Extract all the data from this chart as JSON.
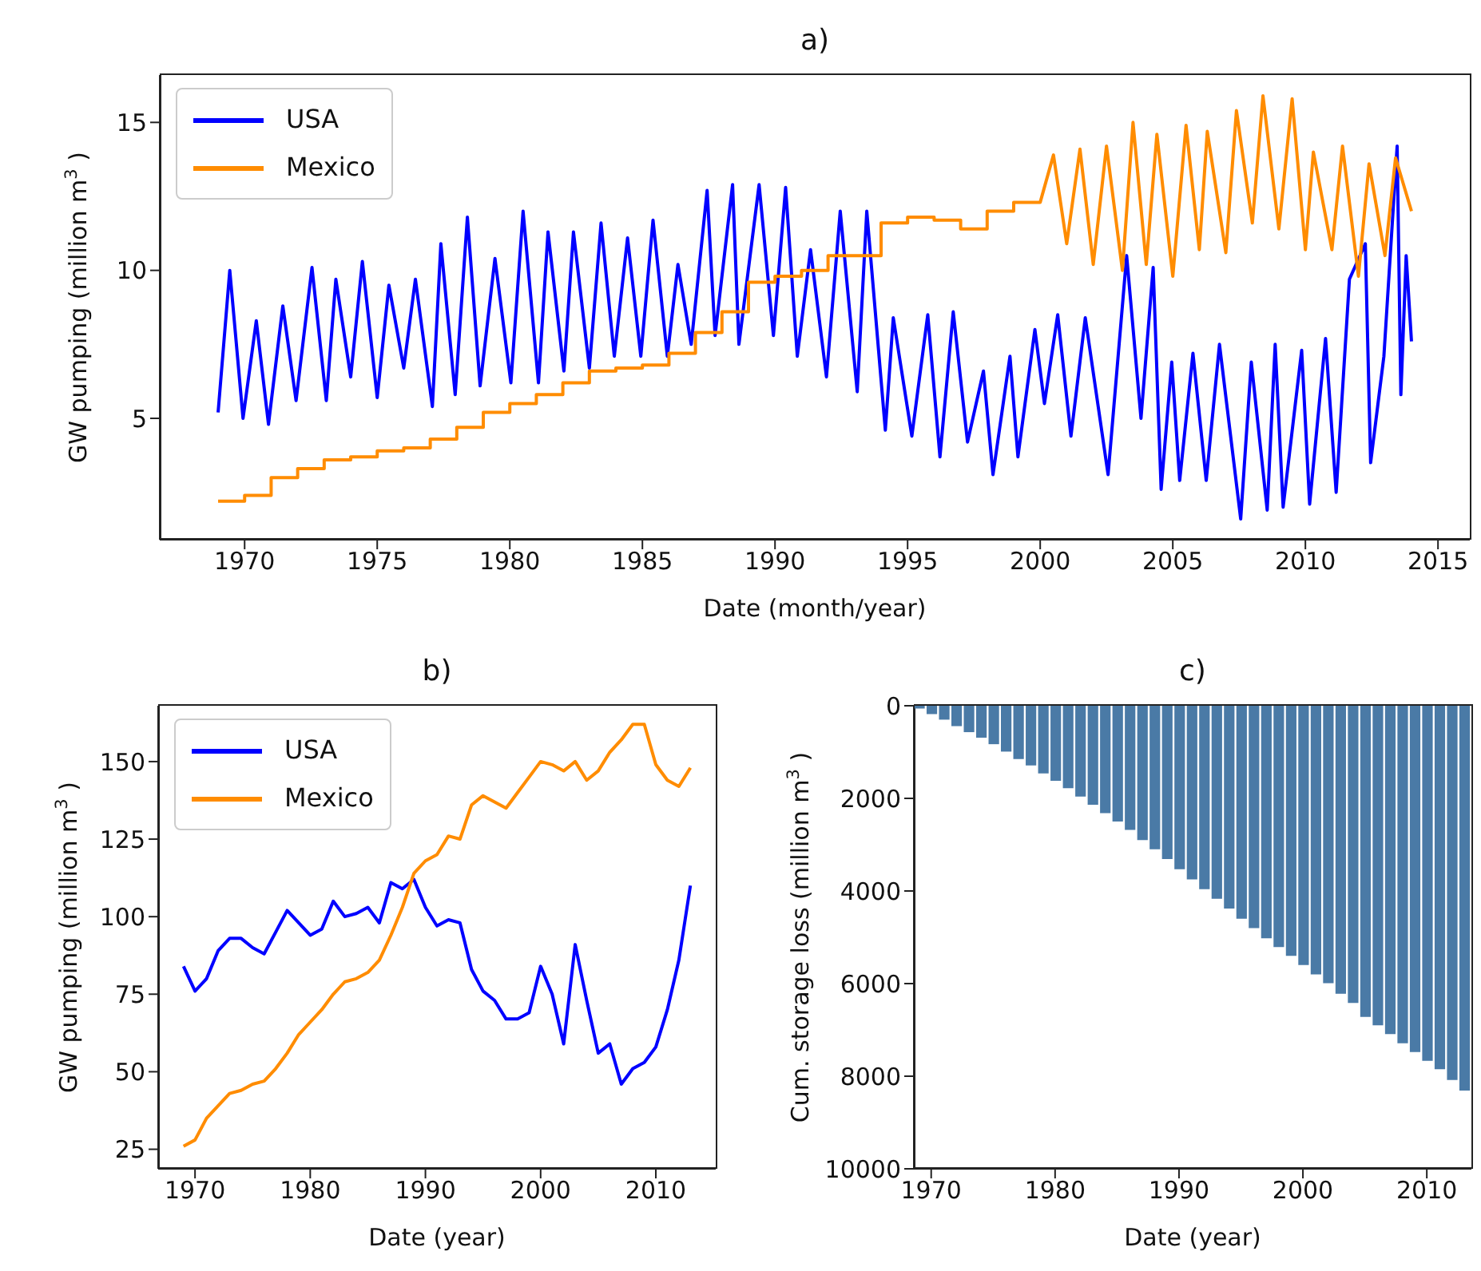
{
  "chart_data": [
    {
      "type": "line",
      "title": "a)",
      "xlabel": "Date (month/year)",
      "ylabel": "GW pumping (million m$^{3}$)",
      "xlim": [
        1966.8,
        2016.2
      ],
      "xticks": [
        1970,
        1975,
        1980,
        1985,
        1990,
        1995,
        2000,
        2005,
        2010,
        2015
      ],
      "ylim": [
        0.9,
        16.6
      ],
      "yticks": [
        5,
        10,
        15
      ],
      "legend": "top left",
      "series": [
        {
          "name": "USA",
          "color": "#0000ff",
          "x": [
            1969.0,
            1969.44,
            1969.94,
            1970.44,
            1970.9,
            1971.44,
            1971.94,
            1972.54,
            1973.08,
            1973.44,
            1974.0,
            1974.44,
            1975.0,
            1975.44,
            1976.0,
            1976.44,
            1977.08,
            1977.4,
            1977.94,
            1978.4,
            1978.88,
            1979.44,
            1980.04,
            1980.5,
            1981.08,
            1981.44,
            1982.04,
            1982.4,
            1983.0,
            1983.44,
            1983.94,
            1984.44,
            1984.94,
            1985.4,
            1985.94,
            1986.34,
            1986.84,
            1987.44,
            1987.74,
            1988.4,
            1988.64,
            1989.4,
            1989.94,
            1990.4,
            1990.84,
            1991.34,
            1991.94,
            1992.46,
            1993.1,
            1993.46,
            1994.16,
            1994.46,
            1995.16,
            1995.76,
            1996.22,
            1996.72,
            1997.26,
            1997.86,
            1998.22,
            1998.86,
            1999.16,
            1999.8,
            2000.16,
            2000.66,
            2001.16,
            2001.7,
            2002.56,
            2003.26,
            2003.8,
            2004.26,
            2004.56,
            2004.96,
            2005.26,
            2005.76,
            2006.26,
            2006.76,
            2007.56,
            2007.96,
            2008.56,
            2008.86,
            2009.16,
            2009.86,
            2010.16,
            2010.76,
            2011.16,
            2011.66,
            2012.26,
            2012.46,
            2012.96,
            2013.46,
            2013.6,
            2013.8,
            2014.0
          ],
          "values": [
            5.2,
            10.0,
            5.0,
            8.3,
            4.8,
            8.8,
            5.6,
            10.1,
            5.6,
            9.7,
            6.4,
            10.3,
            5.7,
            9.5,
            6.7,
            9.7,
            5.4,
            10.9,
            5.8,
            11.8,
            6.1,
            10.4,
            6.2,
            12.0,
            6.2,
            11.3,
            6.6,
            11.3,
            6.7,
            11.6,
            7.1,
            11.1,
            7.1,
            11.7,
            7.1,
            10.2,
            7.5,
            12.7,
            7.8,
            12.9,
            7.5,
            12.9,
            7.8,
            12.8,
            7.1,
            10.7,
            6.4,
            12.0,
            5.9,
            12.0,
            4.6,
            8.4,
            4.4,
            8.5,
            3.7,
            8.6,
            4.2,
            6.6,
            3.1,
            7.1,
            3.7,
            8.0,
            5.5,
            8.5,
            4.4,
            8.4,
            3.1,
            10.5,
            5.0,
            10.1,
            2.6,
            6.9,
            2.9,
            7.2,
            2.9,
            7.5,
            1.6,
            6.9,
            1.9,
            7.5,
            2.0,
            7.3,
            2.1,
            7.7,
            2.5,
            9.7,
            10.9,
            3.5,
            7.1,
            14.2,
            5.8,
            10.5,
            7.6
          ]
        },
        {
          "name": "Mexico",
          "color": "#ff8c00",
          "x": [
            1969,
            1970,
            1970,
            1971,
            1971,
            1972,
            1972,
            1973,
            1973,
            1974,
            1974,
            1975,
            1975,
            1976,
            1976,
            1977,
            1977,
            1978,
            1978,
            1979,
            1979,
            1980,
            1980,
            1981,
            1981,
            1982,
            1982,
            1983,
            1983,
            1984,
            1984,
            1985,
            1985,
            1986,
            1986,
            1987,
            1987,
            1988,
            1988,
            1989,
            1989,
            1990,
            1990,
            1991,
            1991,
            1992,
            1992,
            1994,
            1994,
            1995,
            1995,
            1996,
            1996,
            1997,
            1997,
            1998,
            1998,
            1999,
            1999,
            2000,
            2000.5,
            2001,
            2001.5,
            2002,
            2002.5,
            2003.1,
            2003.5,
            2004,
            2004.4,
            2005,
            2005.5,
            2006,
            2006.3,
            2007,
            2007.4,
            2008,
            2008.4,
            2009,
            2009.5,
            2010,
            2010.3,
            2011,
            2011.4,
            2012,
            2012.4,
            2013,
            2013.4,
            2014
          ],
          "values": [
            2.2,
            2.2,
            2.4,
            2.4,
            3.0,
            3.0,
            3.3,
            3.3,
            3.6,
            3.6,
            3.7,
            3.7,
            3.9,
            3.9,
            4.0,
            4.0,
            4.3,
            4.3,
            4.7,
            4.7,
            5.2,
            5.2,
            5.5,
            5.5,
            5.8,
            5.8,
            6.2,
            6.2,
            6.6,
            6.6,
            6.7,
            6.7,
            6.8,
            6.8,
            7.2,
            7.2,
            7.9,
            7.9,
            8.6,
            8.6,
            9.6,
            9.6,
            9.8,
            9.8,
            10.0,
            10.0,
            10.5,
            10.5,
            11.6,
            11.6,
            11.8,
            11.8,
            11.7,
            11.7,
            11.4,
            11.4,
            12.0,
            12.0,
            12.3,
            12.3,
            13.9,
            10.9,
            14.1,
            10.2,
            14.2,
            10.0,
            15.0,
            10.2,
            14.6,
            9.8,
            14.9,
            10.7,
            14.7,
            10.6,
            15.4,
            11.6,
            15.9,
            11.4,
            15.8,
            10.7,
            14.0,
            10.7,
            14.2,
            9.8,
            13.6,
            10.5,
            13.8,
            12.0
          ]
        }
      ]
    },
    {
      "type": "line",
      "title": "b)",
      "xlabel": "Date (year)",
      "ylabel": "GW pumping (million m$^{3}$)",
      "x": [
        1969,
        1970,
        1971,
        1972,
        1973,
        1974,
        1975,
        1976,
        1977,
        1978,
        1979,
        1980,
        1981,
        1982,
        1983,
        1984,
        1985,
        1986,
        1987,
        1988,
        1989,
        1990,
        1991,
        1992,
        1993,
        1994,
        1995,
        1996,
        1997,
        1998,
        1999,
        2000,
        2001,
        2002,
        2003,
        2004,
        2005,
        2006,
        2007,
        2008,
        2009,
        2010,
        2011,
        2012,
        2013
      ],
      "xlim": [
        1966.8,
        2015.2
      ],
      "xticks": [
        1970,
        1980,
        1990,
        2000,
        2010
      ],
      "ylim": [
        18.7,
        168
      ],
      "yticks": [
        25,
        50,
        75,
        100,
        125,
        150
      ],
      "legend": "top left",
      "series": [
        {
          "name": "USA",
          "color": "#0000ff",
          "values": [
            84,
            76,
            80,
            89,
            93,
            93,
            90,
            88,
            95,
            102,
            98,
            94,
            96,
            105,
            100,
            101,
            103,
            98,
            111,
            109,
            112,
            103,
            97,
            99,
            98,
            83,
            76,
            73,
            67,
            67,
            69,
            84,
            75,
            59,
            91,
            73,
            56,
            59,
            46,
            51,
            53,
            58,
            70,
            86,
            110
          ]
        },
        {
          "name": "Mexico",
          "color": "#ff8c00",
          "values": [
            26,
            28,
            35,
            39,
            43,
            44,
            46,
            47,
            51,
            56,
            62,
            66,
            70,
            75,
            79,
            80,
            82,
            86,
            94,
            103,
            114,
            118,
            120,
            126,
            125,
            136,
            139,
            137,
            135,
            140,
            145,
            150,
            149,
            147,
            150,
            144,
            147,
            153,
            157,
            162,
            162,
            149,
            144,
            142,
            148
          ]
        }
      ]
    },
    {
      "type": "bar",
      "title": "c)",
      "xlabel": "Date (year)",
      "ylabel": "Cum. storage loss (million m$^{3}$)",
      "x": [
        1969,
        1970,
        1971,
        1972,
        1973,
        1974,
        1975,
        1976,
        1977,
        1978,
        1979,
        1980,
        1981,
        1982,
        1983,
        1984,
        1985,
        1986,
        1987,
        1988,
        1989,
        1990,
        1991,
        1992,
        1993,
        1994,
        1995,
        1996,
        1997,
        1998,
        1999,
        2000,
        2001,
        2002,
        2003,
        2004,
        2005,
        2006,
        2007,
        2008,
        2009,
        2010,
        2011,
        2012,
        2013
      ],
      "values": [
        60,
        180,
        300,
        440,
        570,
        690,
        830,
        990,
        1150,
        1290,
        1460,
        1620,
        1780,
        1960,
        2140,
        2320,
        2500,
        2680,
        2900,
        3100,
        3310,
        3530,
        3750,
        3960,
        4170,
        4380,
        4600,
        4800,
        5020,
        5210,
        5400,
        5600,
        5800,
        5990,
        6220,
        6420,
        6720,
        6900,
        7090,
        7290,
        7480,
        7670,
        7850,
        8080,
        8310
      ],
      "color": "#4a7aa6",
      "xlim": [
        1968.6,
        2013.6
      ],
      "xticks": [
        1970,
        1980,
        1990,
        2000,
        2010
      ],
      "ylim": [
        10000,
        0
      ],
      "yticks": [
        0,
        2000,
        4000,
        6000,
        8000,
        10000
      ]
    }
  ]
}
